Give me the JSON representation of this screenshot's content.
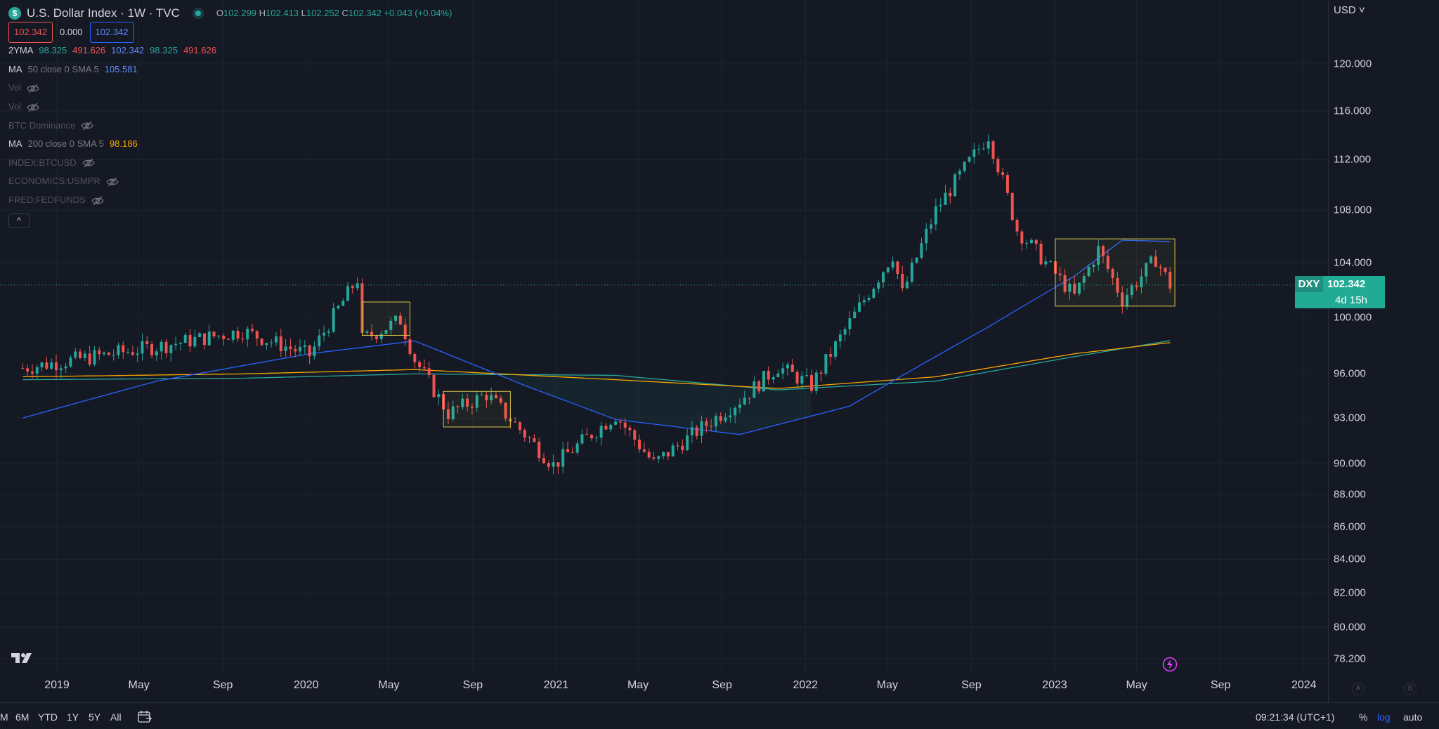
{
  "symbol": {
    "title": "U.S. Dollar Index · 1W · TVC",
    "currency_badge": "$",
    "ohlc": {
      "o_label": "O",
      "o": "102.299",
      "h_label": "H",
      "h": "102.413",
      "l_label": "L",
      "l": "102.252",
      "c_label": "C",
      "c": "102.342",
      "change": "+0.043 (+0.04%)"
    },
    "bid": "102.342",
    "spread": "0.000",
    "ask": "102.342"
  },
  "indicators": [
    {
      "name": "2YMA",
      "values": [
        {
          "text": "98.325",
          "color": "#26a69a"
        },
        {
          "text": "491.626",
          "color": "#ef5350"
        },
        {
          "text": "102.342",
          "color": "#5b8cff"
        },
        {
          "text": "98.325",
          "color": "#26a69a"
        },
        {
          "text": "491.626",
          "color": "#ef5350"
        }
      ],
      "hidden": false
    },
    {
      "name": "MA",
      "params": "50 close 0 SMA 5",
      "values": [
        {
          "text": "105.581",
          "color": "#5b8cff"
        }
      ],
      "hidden": false
    },
    {
      "name": "Vol",
      "hidden": true
    },
    {
      "name": "Vol",
      "hidden": true
    },
    {
      "name": "BTC Dominance",
      "hidden": true
    },
    {
      "name": "MA",
      "params": "200 close 0 SMA 5",
      "values": [
        {
          "text": "98.186",
          "color": "#f7a600"
        }
      ],
      "hidden": false
    },
    {
      "name": "INDEX:BTCUSD",
      "hidden": true
    },
    {
      "name": "ECONOMICS:USMPR",
      "hidden": true
    },
    {
      "name": "FRED:FEDFUNDS",
      "hidden": true
    }
  ],
  "collapse_label": "^",
  "y_axis": {
    "currency": "USD",
    "labels": [
      "120.000",
      "116.000",
      "112.000",
      "108.000",
      "104.000",
      "100.000",
      "96.000",
      "93.000",
      "90.000",
      "88.000",
      "86.000",
      "84.000",
      "82.000",
      "80.000",
      "78.200"
    ]
  },
  "x_axis": {
    "labels": [
      "2019",
      "May",
      "Sep",
      "2020",
      "May",
      "Sep",
      "2021",
      "May",
      "Sep",
      "2022",
      "May",
      "Sep",
      "2023",
      "May",
      "Sep",
      "2024"
    ]
  },
  "price_tag": {
    "symbol": "DXY",
    "price": "102.342",
    "countdown": "4d 15h"
  },
  "bottom_bar": {
    "ranges": [
      "M",
      "6M",
      "YTD",
      "1Y",
      "5Y",
      "All"
    ],
    "clock": "09:21:34 (UTC+1)",
    "pct": "%",
    "log": "log",
    "auto": "auto"
  },
  "scale_markers": [
    "A",
    "B"
  ],
  "colors": {
    "up": "#26a69a",
    "down": "#ef5350",
    "ma50": "#2962ff",
    "ma200": "#f7a600",
    "ma2y": "#26a69a",
    "box": "#d6c545",
    "background": "#151924"
  },
  "chart_data": {
    "type": "candlestick",
    "title": "U.S. Dollar Index · 1W · TVC",
    "scale": "log",
    "ylim": [
      78.2,
      123.0
    ],
    "xlim": [
      "2018-11-12",
      "2024-02-05"
    ],
    "last_price": 102.342,
    "key_points": [
      {
        "date": "2018-11-12",
        "close": 96.4
      },
      {
        "date": "2019-05-27",
        "close": 97.9
      },
      {
        "date": "2019-09-30",
        "close": 99.0
      },
      {
        "date": "2020-01-06",
        "close": 97.3
      },
      {
        "date": "2020-03-16",
        "close": 102.8
      },
      {
        "date": "2020-03-23",
        "close": 98.4
      },
      {
        "date": "2020-05-18",
        "close": 99.8
      },
      {
        "date": "2020-06-08",
        "close": 97.0
      },
      {
        "date": "2020-07-27",
        "close": 93.3
      },
      {
        "date": "2020-09-21",
        "close": 94.6
      },
      {
        "date": "2020-12-28",
        "close": 89.9
      },
      {
        "date": "2021-03-29",
        "close": 93.2
      },
      {
        "date": "2021-05-24",
        "close": 90.0
      },
      {
        "date": "2021-09-27",
        "close": 94.2
      },
      {
        "date": "2021-11-22",
        "close": 96.5
      },
      {
        "date": "2022-01-10",
        "close": 95.2
      },
      {
        "date": "2022-05-09",
        "close": 104.6
      },
      {
        "date": "2022-05-23",
        "close": 101.7
      },
      {
        "date": "2022-07-11",
        "close": 108.0
      },
      {
        "date": "2022-09-26",
        "close": 114.0
      },
      {
        "date": "2022-11-07",
        "close": 106.5
      },
      {
        "date": "2023-01-30",
        "close": 101.5
      },
      {
        "date": "2023-03-06",
        "close": 105.0
      },
      {
        "date": "2023-04-10",
        "close": 101.3
      },
      {
        "date": "2023-05-29",
        "close": 104.3
      },
      {
        "date": "2023-06-19",
        "close": 102.342
      }
    ],
    "ma50_points": [
      {
        "date": "2018-11-12",
        "value": 93.0
      },
      {
        "date": "2019-05-27",
        "value": 95.5
      },
      {
        "date": "2020-01-06",
        "value": 97.4
      },
      {
        "date": "2020-06-08",
        "value": 98.3
      },
      {
        "date": "2020-11-16",
        "value": 95.2
      },
      {
        "date": "2021-03-29",
        "value": 92.9
      },
      {
        "date": "2021-09-27",
        "value": 91.9
      },
      {
        "date": "2022-03-07",
        "value": 93.8
      },
      {
        "date": "2022-09-26",
        "value": 99.3
      },
      {
        "date": "2023-01-30",
        "value": 103.0
      },
      {
        "date": "2023-04-10",
        "value": 105.7
      },
      {
        "date": "2023-06-19",
        "value": 105.6
      }
    ],
    "ma200_points": [
      {
        "date": "2018-11-12",
        "value": 95.8
      },
      {
        "date": "2019-09-30",
        "value": 96.0
      },
      {
        "date": "2020-06-08",
        "value": 96.3
      },
      {
        "date": "2021-03-29",
        "value": 95.6
      },
      {
        "date": "2021-11-22",
        "value": 95.0
      },
      {
        "date": "2022-07-11",
        "value": 95.8
      },
      {
        "date": "2023-01-30",
        "value": 97.4
      },
      {
        "date": "2023-06-19",
        "value": 98.186
      }
    ],
    "ma2y_points": [
      {
        "date": "2018-11-12",
        "value": 95.6
      },
      {
        "date": "2019-09-30",
        "value": 95.7
      },
      {
        "date": "2020-06-08",
        "value": 96.0
      },
      {
        "date": "2021-03-29",
        "value": 95.9
      },
      {
        "date": "2021-11-22",
        "value": 94.9
      },
      {
        "date": "2022-07-11",
        "value": 95.5
      },
      {
        "date": "2023-01-30",
        "value": 97.2
      },
      {
        "date": "2023-06-19",
        "value": 98.325
      }
    ],
    "boxes": [
      {
        "from": "2020-03-23",
        "to": "2020-06-01",
        "low": 98.7,
        "high": 101.1
      },
      {
        "from": "2020-07-20",
        "to": "2020-10-26",
        "low": 92.4,
        "high": 94.8
      },
      {
        "from": "2023-01-02",
        "to": "2023-06-26",
        "low": 100.8,
        "high": 105.8
      }
    ]
  }
}
